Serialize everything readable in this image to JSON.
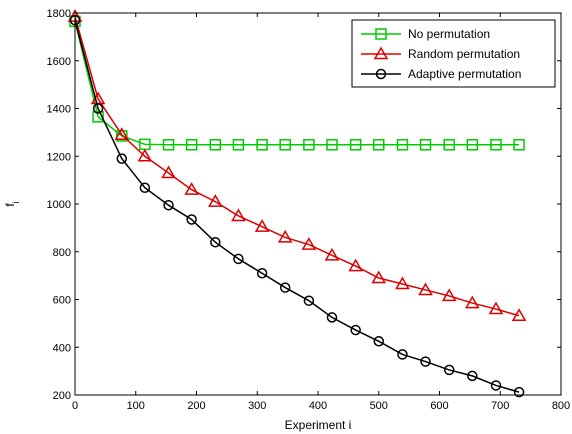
{
  "chart_data": {
    "type": "line",
    "title": "",
    "xlabel": "Experiment i",
    "ylabel": "f",
    "ylabel_subscript": "i",
    "xlim": [
      0,
      800
    ],
    "ylim": [
      200,
      1800
    ],
    "xticks": [
      0,
      100,
      200,
      300,
      400,
      500,
      600,
      700,
      800
    ],
    "yticks": [
      200,
      400,
      600,
      800,
      1000,
      1200,
      1400,
      1600,
      1800
    ],
    "grid": false,
    "legend_position": "top-right",
    "series": [
      {
        "name": "No permutation",
        "color": "#00cc00",
        "marker": "square",
        "x": [
          0,
          38,
          77,
          115,
          154,
          192,
          231,
          269,
          308,
          346,
          385,
          423,
          462,
          500,
          539,
          577,
          616,
          654,
          693,
          731
        ],
        "y": [
          1765,
          1365,
          1285,
          1250,
          1248,
          1248,
          1248,
          1248,
          1248,
          1248,
          1248,
          1248,
          1248,
          1248,
          1248,
          1248,
          1248,
          1248,
          1248,
          1248
        ]
      },
      {
        "name": "Random permutation",
        "color": "#dd0000",
        "marker": "triangle",
        "x": [
          0,
          38,
          77,
          115,
          154,
          192,
          231,
          269,
          308,
          346,
          385,
          423,
          462,
          500,
          539,
          577,
          616,
          654,
          693,
          731
        ],
        "y": [
          1785,
          1440,
          1290,
          1200,
          1130,
          1060,
          1010,
          950,
          905,
          860,
          830,
          785,
          740,
          690,
          665,
          640,
          615,
          585,
          560,
          532
        ]
      },
      {
        "name": "Adaptive permutation",
        "color": "#000000",
        "marker": "circle",
        "x": [
          0,
          38,
          77,
          115,
          154,
          192,
          231,
          269,
          308,
          346,
          385,
          423,
          462,
          500,
          539,
          577,
          616,
          654,
          693,
          731
        ],
        "y": [
          1770,
          1400,
          1190,
          1068,
          995,
          935,
          840,
          770,
          710,
          650,
          595,
          525,
          472,
          425,
          370,
          340,
          305,
          280,
          240,
          212
        ]
      }
    ]
  }
}
